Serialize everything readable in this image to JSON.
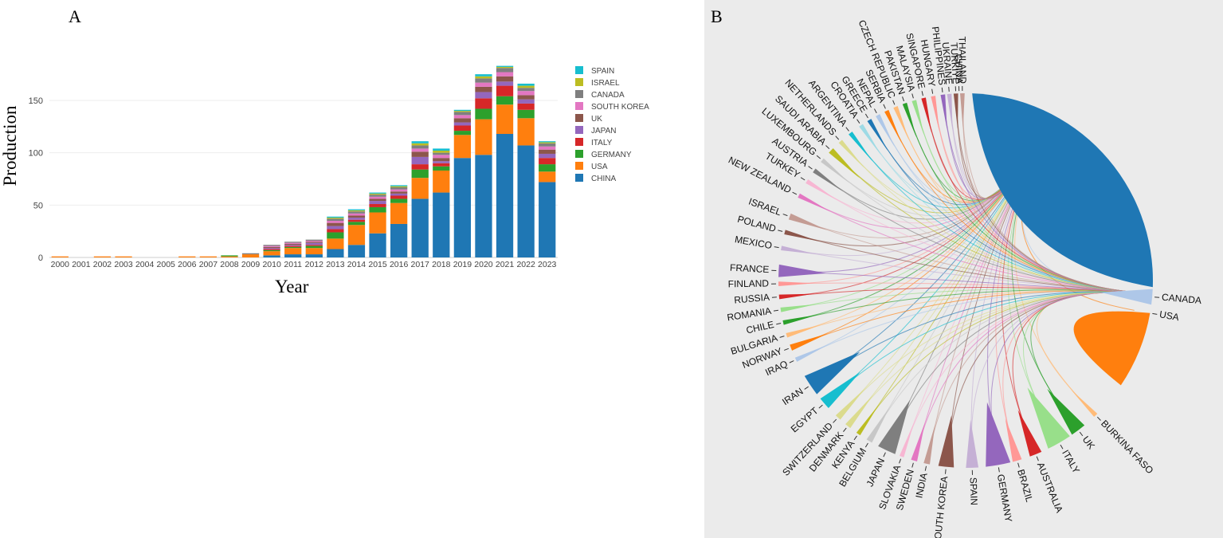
{
  "panel_a_label": "A",
  "panel_b_label": "B",
  "chart_data": [
    {
      "type": "bar",
      "stacked": true,
      "xlabel": "Year",
      "ylabel": "Production",
      "ylim": [
        0,
        185
      ],
      "yticks": [
        0,
        50,
        100,
        150
      ],
      "grid": true,
      "legend_position": "top-right",
      "categories": [
        "2000",
        "2001",
        "2002",
        "2003",
        "2004",
        "2005",
        "2006",
        "2007",
        "2008",
        "2009",
        "2010",
        "2011",
        "2012",
        "2013",
        "2014",
        "2015",
        "2016",
        "2017",
        "2018",
        "2019",
        "2020",
        "2021",
        "2022",
        "2023"
      ],
      "series": [
        {
          "name": "CHINA",
          "color": "#1f77b4",
          "values": [
            0,
            0,
            0,
            0,
            0,
            0,
            0,
            0,
            0,
            0,
            2,
            3,
            3,
            8,
            12,
            23,
            32,
            56,
            62,
            95,
            98,
            118,
            107,
            72
          ]
        },
        {
          "name": "USA",
          "color": "#ff7f0e",
          "values": [
            1,
            0,
            1,
            1,
            0,
            0,
            1,
            1,
            1,
            3,
            4,
            6,
            6,
            10,
            19,
            20,
            20,
            20,
            21,
            22,
            34,
            28,
            26,
            10
          ]
        },
        {
          "name": "GERMANY",
          "color": "#2ca02c",
          "values": [
            0,
            0,
            0,
            0,
            0,
            0,
            0,
            0,
            1,
            0,
            1,
            1,
            2,
            6,
            3,
            5,
            4,
            8,
            4,
            4,
            10,
            8,
            8,
            7
          ]
        },
        {
          "name": "ITALY",
          "color": "#d62728",
          "values": [
            0,
            0,
            0,
            0,
            0,
            0,
            0,
            0,
            0,
            0,
            1,
            1,
            1,
            3,
            2,
            3,
            3,
            5,
            3,
            5,
            10,
            10,
            6,
            6
          ]
        },
        {
          "name": "JAPAN",
          "color": "#9467bd",
          "values": [
            0,
            0,
            0,
            0,
            0,
            0,
            0,
            0,
            0,
            0,
            1,
            1,
            2,
            3,
            2,
            3,
            2,
            7,
            2,
            3,
            6,
            4,
            4,
            4
          ]
        },
        {
          "name": "UK",
          "color": "#8c564b",
          "values": [
            0,
            0,
            0,
            0,
            0,
            0,
            0,
            0,
            0,
            0,
            1,
            1,
            1,
            3,
            2,
            2,
            2,
            5,
            3,
            4,
            5,
            5,
            4,
            4
          ]
        },
        {
          "name": "SOUTH KOREA",
          "color": "#e377c2",
          "values": [
            0,
            0,
            0,
            0,
            0,
            0,
            0,
            0,
            0,
            0,
            1,
            1,
            1,
            2,
            2,
            2,
            2,
            3,
            3,
            3,
            4,
            4,
            4,
            3
          ]
        },
        {
          "name": "CANADA",
          "color": "#7f7f7f",
          "values": [
            0,
            0,
            0,
            0,
            0,
            0,
            0,
            0,
            0,
            1,
            1,
            1,
            1,
            2,
            2,
            2,
            2,
            3,
            2,
            3,
            4,
            4,
            3,
            3
          ]
        },
        {
          "name": "ISRAEL",
          "color": "#bcbd22",
          "values": [
            0,
            0,
            0,
            0,
            0,
            0,
            0,
            0,
            0,
            0,
            0,
            0,
            0,
            1,
            1,
            1,
            1,
            2,
            2,
            1,
            2,
            1,
            2,
            1
          ]
        },
        {
          "name": "SPAIN",
          "color": "#17becf",
          "values": [
            0,
            0,
            0,
            0,
            0,
            0,
            0,
            0,
            0,
            0,
            0,
            0,
            0,
            1,
            1,
            1,
            1,
            2,
            2,
            1,
            2,
            1,
            2,
            1
          ]
        }
      ],
      "legend_order": [
        "SPAIN",
        "ISRAEL",
        "CANADA",
        "SOUTH KOREA",
        "UK",
        "JAPAN",
        "ITALY",
        "GERMANY",
        "USA",
        "CHINA"
      ]
    },
    {
      "type": "chord",
      "title": "",
      "countries": [
        {
          "name": "CHINA",
          "color": "#1f77b4",
          "deg": -2,
          "value": 95
        },
        {
          "name": "CANADA",
          "color": "#aec7e8",
          "deg": 95,
          "value": 5
        },
        {
          "name": "USA",
          "color": "#ff7f0e",
          "deg": 100,
          "value": 40
        },
        {
          "name": "BURKINA FASO",
          "color": "#ffbb78",
          "deg": 136,
          "value": 1
        },
        {
          "name": "UK",
          "color": "#2ca02c",
          "deg": 143,
          "value": 5
        },
        {
          "name": "ITALY",
          "color": "#98df8a",
          "deg": 150,
          "value": 8
        },
        {
          "name": "AUSTRALIA",
          "color": "#d62728",
          "deg": 158,
          "value": 4
        },
        {
          "name": "BRAZIL",
          "color": "#ff9896",
          "deg": 164,
          "value": 3
        },
        {
          "name": "GERMANY",
          "color": "#9467bd",
          "deg": 170,
          "value": 8
        },
        {
          "name": "SPAIN",
          "color": "#c5b0d5",
          "deg": 178,
          "value": 4
        },
        {
          "name": "SOUTH KOREA",
          "color": "#8c564b",
          "deg": 186,
          "value": 5
        },
        {
          "name": "INDIA",
          "color": "#c49c94",
          "deg": 192,
          "value": 2
        },
        {
          "name": "SWEDEN",
          "color": "#e377c2",
          "deg": 196,
          "value": 2
        },
        {
          "name": "SLOVAKIA",
          "color": "#f7b6d2",
          "deg": 200,
          "value": 1
        },
        {
          "name": "JAPAN",
          "color": "#7f7f7f",
          "deg": 205,
          "value": 6
        },
        {
          "name": "BELGIUM",
          "color": "#c7c7c7",
          "deg": 211,
          "value": 2
        },
        {
          "name": "KENYA",
          "color": "#bcbd22",
          "deg": 215,
          "value": 1
        },
        {
          "name": "DENMARK",
          "color": "#dbdb8d",
          "deg": 219,
          "value": 2
        },
        {
          "name": "SWITZERLAND",
          "color": "#dbdb8d",
          "deg": 223,
          "value": 2
        },
        {
          "name": "EGYPT",
          "color": "#17becf",
          "deg": 229,
          "value": 4
        },
        {
          "name": "IRAN",
          "color": "#1f77b4",
          "deg": 236,
          "value": 7
        },
        {
          "name": "IRAQ",
          "color": "#aec7e8",
          "deg": 245,
          "value": 1
        },
        {
          "name": "NORWAY",
          "color": "#ff7f0e",
          "deg": 249,
          "value": 2
        },
        {
          "name": "BULGARIA",
          "color": "#ffbb78",
          "deg": 253,
          "value": 1
        },
        {
          "name": "CHILE",
          "color": "#2ca02c",
          "deg": 257,
          "value": 1
        },
        {
          "name": "ROMANIA",
          "color": "#98df8a",
          "deg": 261,
          "value": 1
        },
        {
          "name": "RUSSIA",
          "color": "#d62728",
          "deg": 265,
          "value": 1
        },
        {
          "name": "FINLAND",
          "color": "#ff9896",
          "deg": 269,
          "value": 1
        },
        {
          "name": "FRANCE",
          "color": "#9467bd",
          "deg": 273,
          "value": 4
        },
        {
          "name": "MEXICO",
          "color": "#c5b0d5",
          "deg": 280,
          "value": 1
        },
        {
          "name": "POLAND",
          "color": "#8c564b",
          "deg": 285,
          "value": 1
        },
        {
          "name": "ISRAEL",
          "color": "#c49c94",
          "deg": 290,
          "value": 2
        },
        {
          "name": "NEW ZEALAND",
          "color": "#e377c2",
          "deg": 297,
          "value": 1
        },
        {
          "name": "TURKEY",
          "color": "#f7b6d2",
          "deg": 302,
          "value": 1
        },
        {
          "name": "AUSTRIA",
          "color": "#7f7f7f",
          "deg": 306,
          "value": 1
        },
        {
          "name": "LUXEMBOURG",
          "color": "#c7c7c7",
          "deg": 310,
          "value": 1
        },
        {
          "name": "SAUDI ARABIA",
          "color": "#bcbd22",
          "deg": 314,
          "value": 2
        },
        {
          "name": "NETHERLANDS",
          "color": "#dbdb8d",
          "deg": 318,
          "value": 1
        },
        {
          "name": "ARGENTINA",
          "color": "#17becf",
          "deg": 322,
          "value": 1
        },
        {
          "name": "CROATIA",
          "color": "#9edae5",
          "deg": 326,
          "value": 1
        },
        {
          "name": "GREECE",
          "color": "#1f77b4",
          "deg": 329,
          "value": 1
        },
        {
          "name": "NEPAL",
          "color": "#aec7e8",
          "deg": 332,
          "value": 1
        },
        {
          "name": "SERBIA",
          "color": "#ff7f0e",
          "deg": 335,
          "value": 1
        },
        {
          "name": "CZECH REPUBLIC",
          "color": "#ffbb78",
          "deg": 338,
          "value": 1
        },
        {
          "name": "PAKISTAN",
          "color": "#2ca02c",
          "deg": 341,
          "value": 1
        },
        {
          "name": "MALAYSIA",
          "color": "#98df8a",
          "deg": 344,
          "value": 1
        },
        {
          "name": "SINGAPORE",
          "color": "#d62728",
          "deg": 347,
          "value": 1
        },
        {
          "name": "HUNGARY",
          "color": "#ff9896",
          "deg": 350,
          "value": 1
        },
        {
          "name": "PHILIPPINES",
          "color": "#9467bd",
          "deg": 353,
          "value": 1
        },
        {
          "name": "UKRAINE",
          "color": "#c5b0d5",
          "deg": 355,
          "value": 1
        },
        {
          "name": "TURKIYE",
          "color": "#8c564b",
          "deg": 357,
          "value": 1
        },
        {
          "name": "THAILAND",
          "color": "#c49c94",
          "deg": 359,
          "value": 1
        }
      ]
    }
  ]
}
